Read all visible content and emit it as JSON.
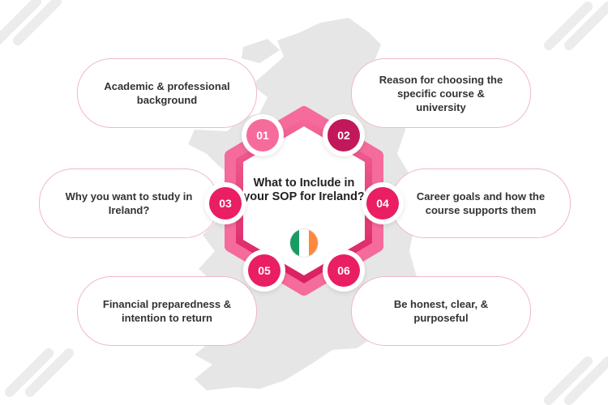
{
  "center": {
    "title": "What to Include in your SOP for Ireland?",
    "flag_colors": [
      "#169b62",
      "#ffffff",
      "#ff883e"
    ]
  },
  "colors": {
    "accent_light": "#f56b9b",
    "accent": "#e91e63",
    "accent_dark": "#c2185b",
    "map": "#e6e6e6",
    "pill_border": "#f0b8c8"
  },
  "items": [
    {
      "number": "01",
      "text": "Academic & professional background"
    },
    {
      "number": "02",
      "text": "Reason for choosing the specific course & university"
    },
    {
      "number": "03",
      "text": "Why you want to study in Ireland?"
    },
    {
      "number": "04",
      "text": "Career goals and how the course supports them"
    },
    {
      "number": "05",
      "text": "Financial preparedness & intention to return"
    },
    {
      "number": "06",
      "text": "Be honest, clear, & purposeful"
    }
  ]
}
